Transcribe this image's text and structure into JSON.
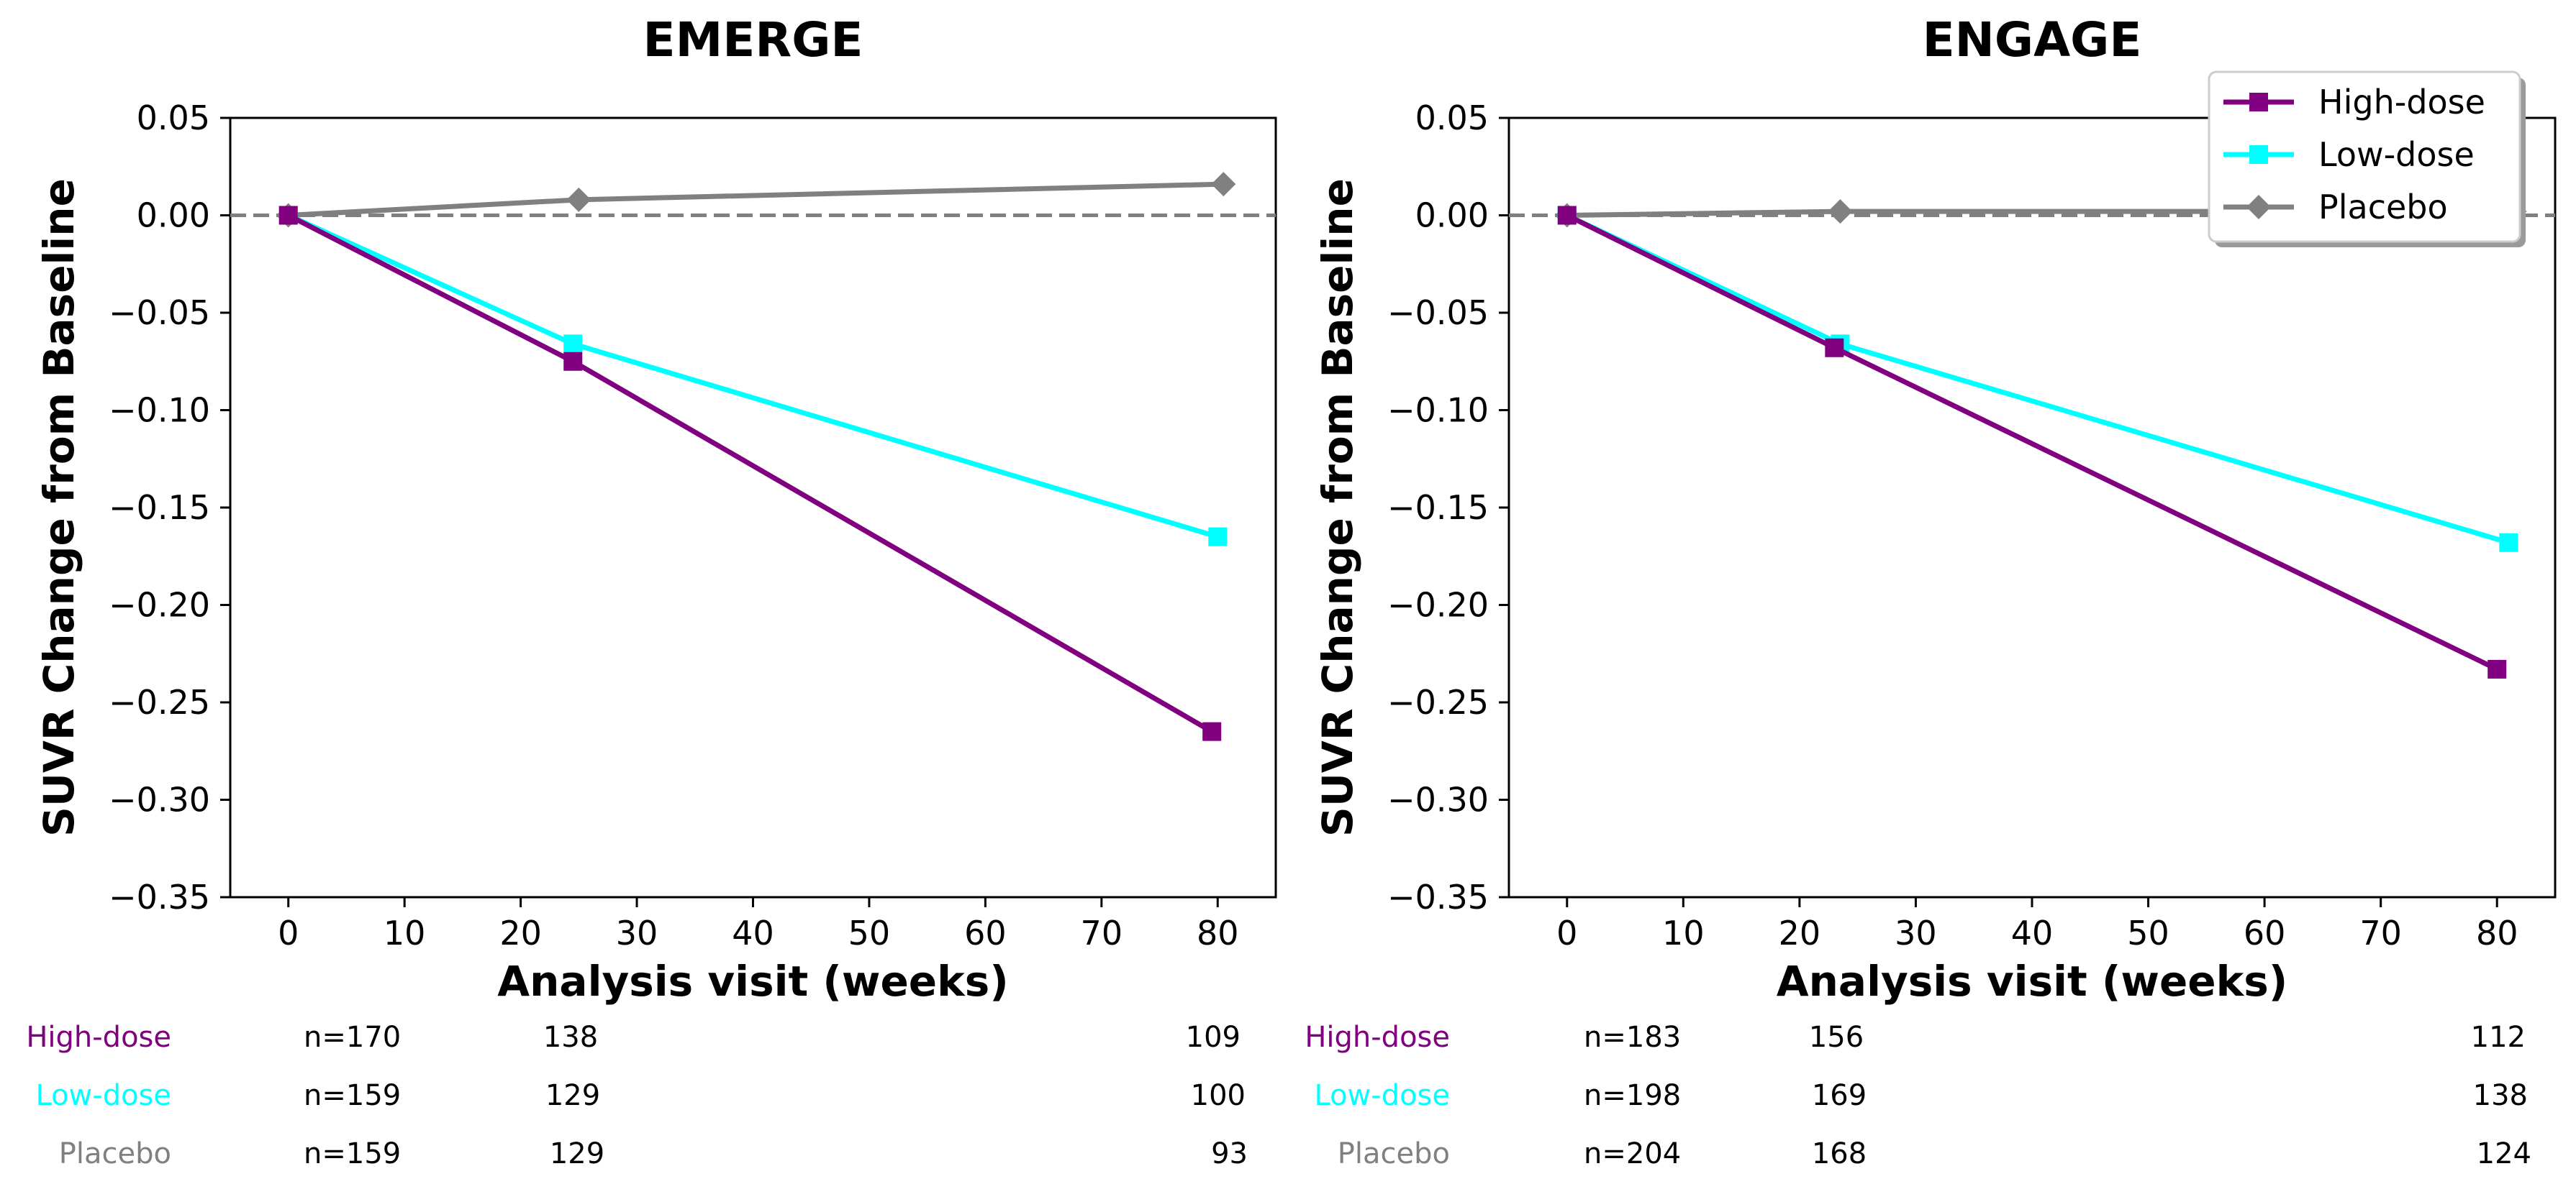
{
  "chart_data": [
    {
      "type": "line",
      "title": "EMERGE",
      "xlabel": "Analysis visit (weeks)",
      "ylabel": "SUVR Change from Baseline",
      "xlim": [
        -5,
        85
      ],
      "ylim": [
        -0.35,
        0.05
      ],
      "xticks": [
        0,
        10,
        20,
        30,
        40,
        50,
        60,
        70,
        80
      ],
      "yticks": [
        0.05,
        0.0,
        -0.05,
        -0.1,
        -0.15,
        -0.2,
        -0.25,
        -0.3,
        -0.35
      ],
      "xtick_labels": [
        "0",
        "10",
        "20",
        "30",
        "40",
        "50",
        "60",
        "70",
        "80"
      ],
      "ytick_labels": [
        "0.05",
        "0.00",
        "−0.05",
        "−0.10",
        "−0.15",
        "−0.20",
        "−0.25",
        "−0.30",
        "−0.35"
      ],
      "reference_line": 0,
      "legend": null,
      "series": [
        {
          "name": "High-dose",
          "color": "#800080",
          "marker": "square",
          "x": [
            0,
            24.5,
            79.5
          ],
          "y": [
            0.0,
            -0.075,
            -0.265
          ]
        },
        {
          "name": "Low-dose",
          "color": "#00FFFF",
          "marker": "square",
          "x": [
            0,
            24.5,
            80.0
          ],
          "y": [
            0.0,
            -0.066,
            -0.165
          ]
        },
        {
          "name": "Placebo",
          "color": "#808080",
          "marker": "diamond",
          "x": [
            0,
            25.0,
            80.5
          ],
          "y": [
            0.0,
            0.008,
            0.016
          ]
        }
      ],
      "risk_table": {
        "rows": [
          {
            "label": "High-dose",
            "color": "#800080",
            "counts": [
              "n=170",
              "138",
              "109"
            ]
          },
          {
            "label": "Low-dose",
            "color": "#00FFFF",
            "counts": [
              "n=159",
              "129",
              "100"
            ]
          },
          {
            "label": "Placebo",
            "color": "#808080",
            "counts": [
              "n=159",
              "129",
              "93"
            ]
          }
        ]
      }
    },
    {
      "type": "line",
      "title": "ENGAGE",
      "xlabel": "Analysis visit (weeks)",
      "ylabel": "SUVR Change from Baseline",
      "xlim": [
        -5,
        85
      ],
      "ylim": [
        -0.35,
        0.05
      ],
      "xticks": [
        0,
        10,
        20,
        30,
        40,
        50,
        60,
        70,
        80
      ],
      "yticks": [
        0.05,
        0.0,
        -0.05,
        -0.1,
        -0.15,
        -0.2,
        -0.25,
        -0.3,
        -0.35
      ],
      "xtick_labels": [
        "0",
        "10",
        "20",
        "30",
        "40",
        "50",
        "60",
        "70",
        "80"
      ],
      "ytick_labels": [
        "0.05",
        "0.00",
        "−0.05",
        "−0.10",
        "−0.15",
        "−0.20",
        "−0.25",
        "−0.30",
        "−0.35"
      ],
      "reference_line": 0,
      "legend": {
        "placement": "top-right",
        "entries": [
          "High-dose",
          "Low-dose",
          "Placebo"
        ]
      },
      "series": [
        {
          "name": "High-dose",
          "color": "#800080",
          "marker": "square",
          "x": [
            0,
            23.0,
            80.0
          ],
          "y": [
            0.0,
            -0.068,
            -0.233
          ]
        },
        {
          "name": "Low-dose",
          "color": "#00FFFF",
          "marker": "square",
          "x": [
            0,
            23.5,
            81.0
          ],
          "y": [
            0.0,
            -0.066,
            -0.168
          ]
        },
        {
          "name": "Placebo",
          "color": "#808080",
          "marker": "diamond",
          "x": [
            0,
            23.5,
            81.5
          ],
          "y": [
            0.0,
            0.002,
            0.002
          ]
        }
      ],
      "risk_table": {
        "rows": [
          {
            "label": "High-dose",
            "color": "#800080",
            "counts": [
              "n=183",
              "156",
              "112"
            ]
          },
          {
            "label": "Low-dose",
            "color": "#00FFFF",
            "counts": [
              "n=198",
              "169",
              "138"
            ]
          },
          {
            "label": "Placebo",
            "color": "#808080",
            "counts": [
              "n=204",
              "168",
              "124"
            ]
          }
        ]
      }
    }
  ]
}
